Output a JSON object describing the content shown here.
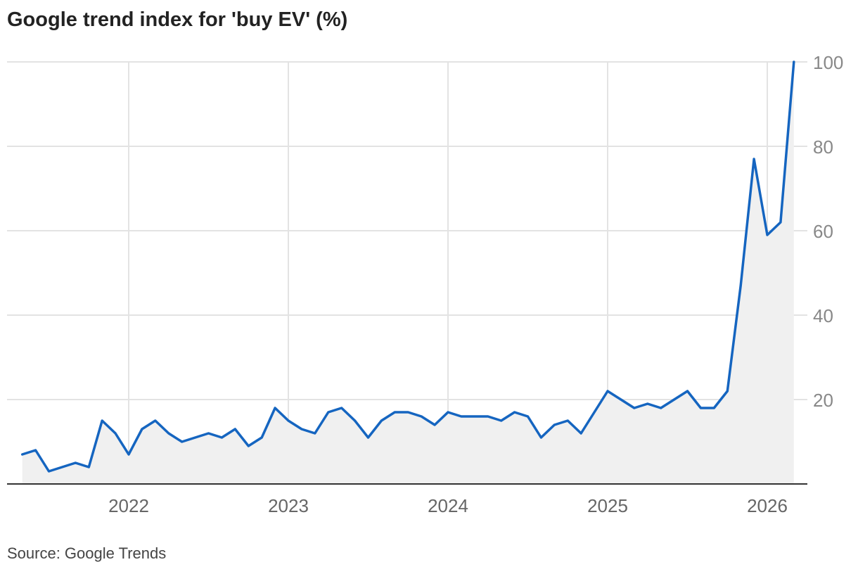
{
  "chart_data": {
    "type": "area",
    "title": "Google trend index for 'buy EV' (%)",
    "source": "Source: Google Trends",
    "xlabel": "",
    "ylabel": "",
    "ylim": [
      0,
      100
    ],
    "xlim": [
      "2021-05",
      "2026-03"
    ],
    "y_ticks": [
      20,
      40,
      60,
      80,
      100
    ],
    "y_tick_labels": [
      "20",
      "40",
      "60",
      "80",
      "100"
    ],
    "x_ticks": [
      "2022-01",
      "2023-01",
      "2024-01",
      "2025-01",
      "2026-01"
    ],
    "x_tick_labels": [
      "2022",
      "2023",
      "2024",
      "2025",
      "2026"
    ],
    "grid": true,
    "y_axis_position": "right",
    "colors": {
      "line": "#1565c0",
      "fill": "#f0f0f0",
      "grid": "#e3e3e3",
      "axis": "#333333"
    },
    "series": [
      {
        "x": [
          "2021-05",
          "2021-06",
          "2021-07",
          "2021-08",
          "2021-09",
          "2021-10",
          "2021-11",
          "2021-12",
          "2022-01",
          "2022-02",
          "2022-03",
          "2022-04",
          "2022-05",
          "2022-06",
          "2022-07",
          "2022-08",
          "2022-09",
          "2022-10",
          "2022-11",
          "2022-12",
          "2023-01",
          "2023-02",
          "2023-03",
          "2023-04",
          "2023-05",
          "2023-06",
          "2023-07",
          "2023-08",
          "2023-09",
          "2023-10",
          "2023-11",
          "2023-12",
          "2024-01",
          "2024-02",
          "2024-03",
          "2024-04",
          "2024-05",
          "2024-06",
          "2024-07",
          "2024-08",
          "2024-09",
          "2024-10",
          "2024-11",
          "2024-12",
          "2025-01",
          "2025-02",
          "2025-03",
          "2025-04",
          "2025-05",
          "2025-06",
          "2025-07",
          "2025-08",
          "2025-09",
          "2025-10",
          "2025-11",
          "2025-12",
          "2026-01",
          "2026-02",
          "2026-03"
        ],
        "values": [
          7,
          8,
          3,
          4,
          5,
          4,
          15,
          12,
          7,
          13,
          15,
          12,
          10,
          11,
          12,
          11,
          13,
          9,
          11,
          18,
          15,
          13,
          12,
          17,
          18,
          15,
          11,
          15,
          17,
          17,
          16,
          14,
          17,
          16,
          16,
          16,
          15,
          17,
          16,
          11,
          14,
          15,
          12,
          17,
          22,
          20,
          18,
          19,
          18,
          20,
          22,
          18,
          18,
          22,
          47,
          77,
          59,
          62,
          100
        ]
      }
    ]
  }
}
